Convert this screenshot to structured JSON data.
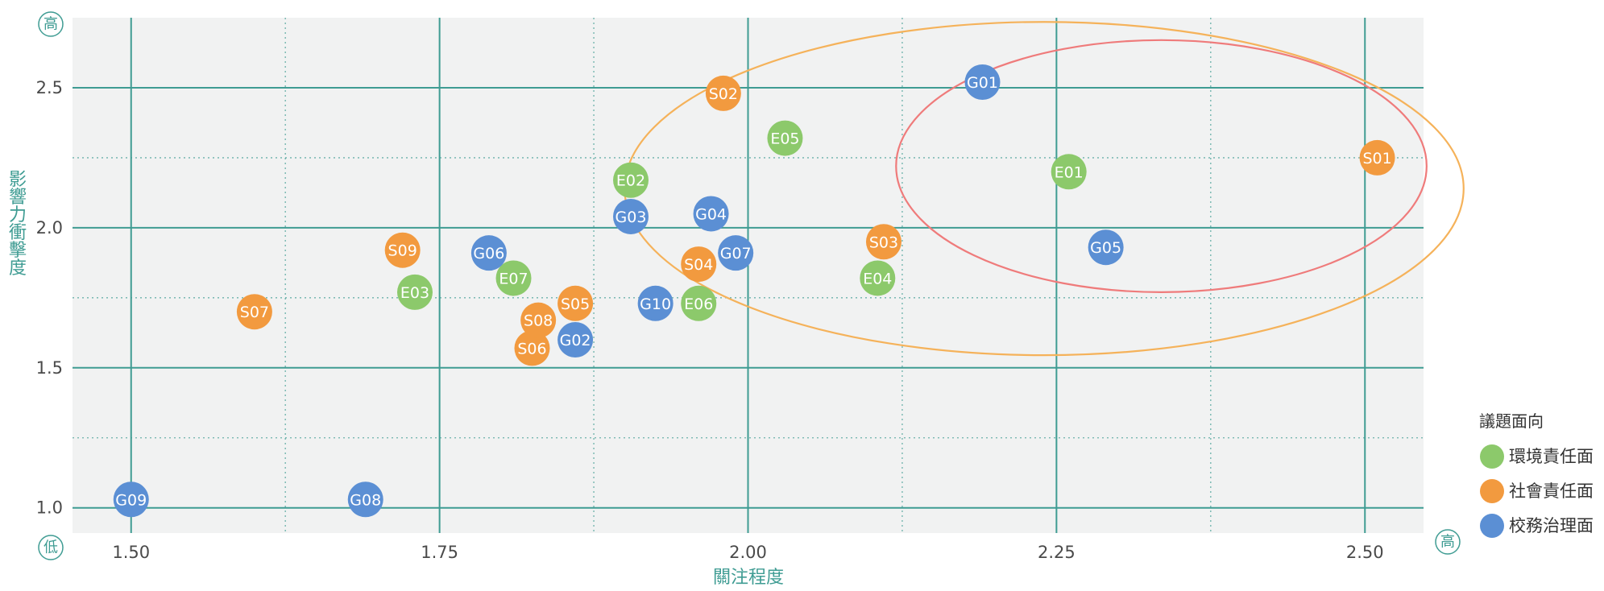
{
  "chart_data": {
    "type": "scatter",
    "title": "",
    "xlabel": "關注程度",
    "ylabel": "影響力衝擊度",
    "xlim": [
      1.4525,
      2.5475
    ],
    "ylim": [
      0.91,
      2.75
    ],
    "x_ticks": [
      "1.50",
      "1.75",
      "2.00",
      "2.25",
      "2.50"
    ],
    "y_ticks": [
      "1.0",
      "1.5",
      "2.0",
      "2.5"
    ],
    "grid": true,
    "corner_labels": {
      "y_high": "高",
      "y_low": "低",
      "x_high": "高"
    },
    "legend": {
      "title": "議題面向",
      "position": "right",
      "items": [
        {
          "name": "環境責任面",
          "color": "#8cc96b"
        },
        {
          "name": "社會責任面",
          "color": "#f29a3f"
        },
        {
          "name": "校務治理面",
          "color": "#5b8fd4"
        }
      ]
    },
    "series": [
      {
        "name": "環境責任面",
        "color": "#8cc96b",
        "points": [
          {
            "label": "E01",
            "x": 2.26,
            "y": 2.2
          },
          {
            "label": "E02",
            "x": 1.905,
            "y": 2.17
          },
          {
            "label": "E03",
            "x": 1.73,
            "y": 1.77
          },
          {
            "label": "E04",
            "x": 2.105,
            "y": 1.82
          },
          {
            "label": "E05",
            "x": 2.03,
            "y": 2.32
          },
          {
            "label": "E06",
            "x": 1.96,
            "y": 1.73
          },
          {
            "label": "E07",
            "x": 1.81,
            "y": 1.82
          }
        ]
      },
      {
        "name": "社會責任面",
        "color": "#f29a3f",
        "points": [
          {
            "label": "S01",
            "x": 2.51,
            "y": 2.25
          },
          {
            "label": "S02",
            "x": 1.98,
            "y": 2.48
          },
          {
            "label": "S03",
            "x": 2.11,
            "y": 1.95
          },
          {
            "label": "S04",
            "x": 1.96,
            "y": 1.87
          },
          {
            "label": "S05",
            "x": 1.86,
            "y": 1.73
          },
          {
            "label": "S06",
            "x": 1.825,
            "y": 1.57
          },
          {
            "label": "S07",
            "x": 1.6,
            "y": 1.7
          },
          {
            "label": "S08",
            "x": 1.83,
            "y": 1.67
          },
          {
            "label": "S09",
            "x": 1.72,
            "y": 1.92
          }
        ]
      },
      {
        "name": "校務治理面",
        "color": "#5b8fd4",
        "points": [
          {
            "label": "G01",
            "x": 2.19,
            "y": 2.52
          },
          {
            "label": "G02",
            "x": 1.86,
            "y": 1.6
          },
          {
            "label": "G03",
            "x": 1.905,
            "y": 2.04
          },
          {
            "label": "G04",
            "x": 1.97,
            "y": 2.05
          },
          {
            "label": "G05",
            "x": 2.29,
            "y": 1.93
          },
          {
            "label": "G06",
            "x": 1.79,
            "y": 1.91
          },
          {
            "label": "G07",
            "x": 1.99,
            "y": 1.91
          },
          {
            "label": "G08",
            "x": 1.69,
            "y": 1.03
          },
          {
            "label": "G09",
            "x": 1.5,
            "y": 1.03
          },
          {
            "label": "G10",
            "x": 1.925,
            "y": 1.73
          }
        ]
      }
    ],
    "highlight_ellipses": [
      {
        "color": "#f5b25a",
        "cx": 2.24,
        "cy": 2.14,
        "rx": 0.34,
        "ry": 0.595
      },
      {
        "color": "#ef7b7b",
        "cx": 2.335,
        "cy": 2.22,
        "rx": 0.215,
        "ry": 0.45
      }
    ],
    "colors": {
      "plot_bg": "#f1f2f2",
      "grid": "#3f9c93",
      "axis_text": "#3f9c93"
    }
  }
}
